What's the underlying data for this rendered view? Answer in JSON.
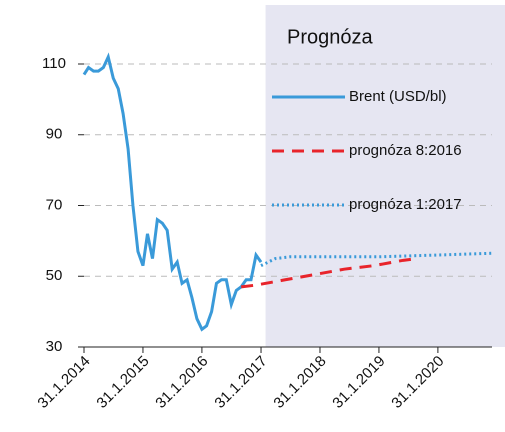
{
  "chart_data": {
    "type": "line",
    "forecast_label": "Prognóza",
    "shaded_from": "2017-02-28",
    "xlim": [
      "2014-01-31",
      "2020-12-31"
    ],
    "xticks": [
      {
        "value": "2014-01-31",
        "label": "31.1.2014"
      },
      {
        "value": "2015-01-31",
        "label": "31.1.2015"
      },
      {
        "value": "2016-01-31",
        "label": "31.1.2016"
      },
      {
        "value": "2017-01-31",
        "label": "31.1.2017"
      },
      {
        "value": "2018-01-31",
        "label": "31.1.2018"
      },
      {
        "value": "2019-01-31",
        "label": "31.1.2019"
      },
      {
        "value": "2020-01-31",
        "label": "31.1.2020"
      }
    ],
    "ylim": [
      30,
      110
    ],
    "yticks": [
      30,
      50,
      70,
      90,
      110
    ],
    "grid": true,
    "series": [
      {
        "name": "Brent (USD/bl)",
        "color": "#3a9ad9",
        "style": "solid",
        "x": [
          "2014-01-31",
          "2014-02-28",
          "2014-03-31",
          "2014-04-30",
          "2014-05-31",
          "2014-06-30",
          "2014-07-31",
          "2014-08-31",
          "2014-09-30",
          "2014-10-31",
          "2014-11-30",
          "2014-12-31",
          "2015-01-31",
          "2015-02-28",
          "2015-03-31",
          "2015-04-30",
          "2015-05-31",
          "2015-06-30",
          "2015-07-31",
          "2015-08-31",
          "2015-09-30",
          "2015-10-31",
          "2015-11-30",
          "2015-12-31",
          "2016-01-31",
          "2016-02-29",
          "2016-03-31",
          "2016-04-30",
          "2016-05-31",
          "2016-06-30",
          "2016-07-31",
          "2016-08-31",
          "2016-09-30",
          "2016-10-31",
          "2016-11-30",
          "2016-12-31",
          "2017-01-31"
        ],
        "values": [
          107,
          109,
          108,
          108,
          109,
          112,
          106,
          103,
          96,
          86,
          70,
          57,
          53,
          62,
          55,
          66,
          65,
          63,
          52,
          54,
          48,
          49,
          44,
          38,
          35,
          36,
          40,
          48,
          49,
          49,
          42,
          46,
          47,
          49,
          49,
          56,
          54
        ]
      },
      {
        "name": "prognóza 8:2016",
        "color": "#e8242b",
        "style": "dashed",
        "x": [
          "2016-09-30",
          "2016-12-31",
          "2017-06-30",
          "2017-12-31",
          "2018-06-30",
          "2018-12-31",
          "2019-06-30",
          "2019-09-30"
        ],
        "values": [
          47,
          47.5,
          49,
          50.5,
          52,
          53,
          54.5,
          55
        ]
      },
      {
        "name": "prognóza 1:2017",
        "color": "#3a9ad9",
        "style": "dotted",
        "x": [
          "2017-01-31",
          "2017-04-30",
          "2017-07-31",
          "2018-01-31",
          "2019-01-31",
          "2020-01-31",
          "2020-12-31"
        ],
        "values": [
          53,
          55,
          55.5,
          55.5,
          55.5,
          56,
          56.5
        ]
      }
    ]
  }
}
